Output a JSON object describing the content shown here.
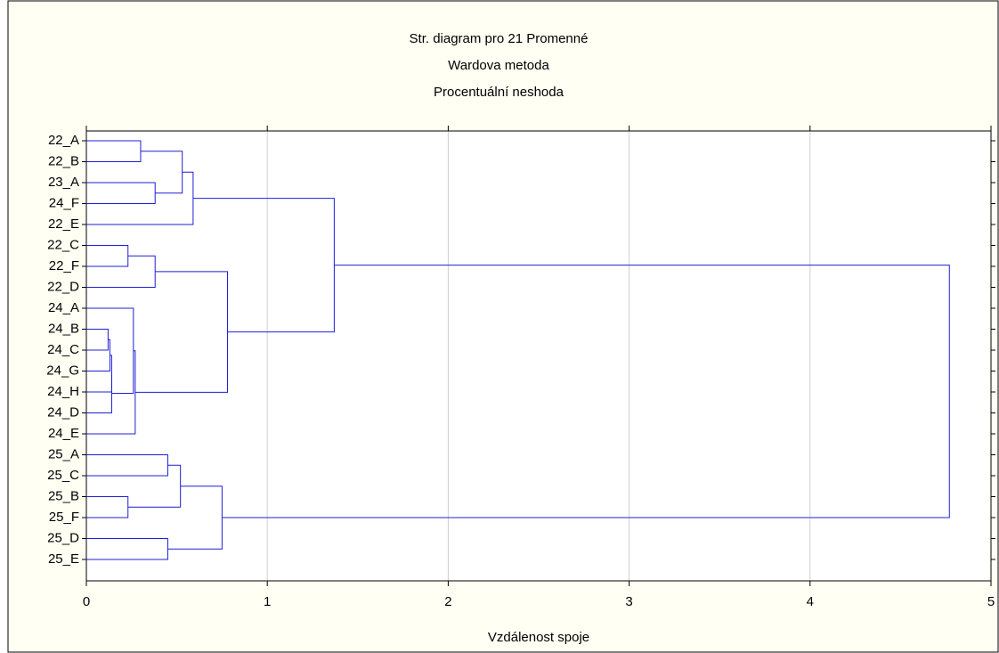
{
  "chart_data": {
    "type": "dendrogram",
    "title": "Str. diagram pro 21  Promenné",
    "subtitles": [
      "Wardova metoda",
      "Procentuální neshoda"
    ],
    "xlabel": "Vzdálenost spoje",
    "color": "#1f1fd6",
    "grid": true,
    "xlim": [
      0,
      5
    ],
    "xticks": [
      0,
      1,
      2,
      3,
      4,
      5
    ],
    "leaves": [
      "22_A",
      "22_B",
      "23_A",
      "24_F",
      "22_E",
      "22_C",
      "22_F",
      "22_D",
      "24_A",
      "24_B",
      "24_C",
      "24_G",
      "24_H",
      "24_D",
      "24_E",
      "25_A",
      "25_C",
      "25_B",
      "25_F",
      "25_D",
      "25_E"
    ],
    "merges": [
      {
        "left": 0,
        "right": 1,
        "height": 0.3
      },
      {
        "left": 2,
        "right": 3,
        "height": 0.38
      },
      {
        "left": 21,
        "right": 22,
        "height": 0.53
      },
      {
        "left": 23,
        "right": 4,
        "height": 0.59
      },
      {
        "left": 5,
        "right": 6,
        "height": 0.23
      },
      {
        "left": 25,
        "right": 7,
        "height": 0.38
      },
      {
        "left": 9,
        "right": 10,
        "height": 0.12
      },
      {
        "left": 27,
        "right": 11,
        "height": 0.13
      },
      {
        "left": 28,
        "right": 12,
        "height": 0.14
      },
      {
        "left": 29,
        "right": 13,
        "height": 0.14
      },
      {
        "left": 8,
        "right": 30,
        "height": 0.26
      },
      {
        "left": 31,
        "right": 14,
        "height": 0.27
      },
      {
        "left": 26,
        "right": 32,
        "height": 0.78
      },
      {
        "left": 24,
        "right": 33,
        "height": 1.37
      },
      {
        "left": 15,
        "right": 16,
        "height": 0.45
      },
      {
        "left": 17,
        "right": 18,
        "height": 0.23
      },
      {
        "left": 35,
        "right": 36,
        "height": 0.52
      },
      {
        "left": 19,
        "right": 20,
        "height": 0.45
      },
      {
        "left": 37,
        "right": 38,
        "height": 0.75
      },
      {
        "left": 34,
        "right": 39,
        "height": 4.77
      }
    ]
  }
}
